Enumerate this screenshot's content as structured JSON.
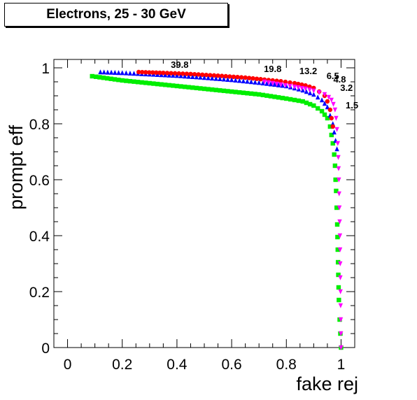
{
  "chart_data": {
    "type": "scatter",
    "title": "Electrons, 25 - 30 GeV",
    "xlabel": "fake rej",
    "ylabel": "prompt eff",
    "xlim": [
      -0.05,
      1.05
    ],
    "ylim": [
      0,
      1.03
    ],
    "xticks": [
      "0",
      "0.2",
      "0.4",
      "0.6",
      "0.8",
      "1"
    ],
    "yticks": [
      "0",
      "0.2",
      "0.4",
      "0.6",
      "0.8",
      "1"
    ],
    "grid": false,
    "series": [
      {
        "color": "#00ee00",
        "marker": "square",
        "x": [
          0.09,
          0.2,
          0.3,
          0.4,
          0.5,
          0.6,
          0.7,
          0.8,
          0.86,
          0.9,
          0.93,
          0.95,
          0.96,
          0.965,
          0.97,
          0.975,
          0.978,
          0.98,
          0.982,
          0.984,
          0.986,
          0.988,
          0.99,
          0.992,
          0.995,
          1.0
        ],
        "y": [
          0.97,
          0.955,
          0.945,
          0.935,
          0.925,
          0.915,
          0.905,
          0.89,
          0.88,
          0.865,
          0.845,
          0.82,
          0.79,
          0.76,
          0.73,
          0.69,
          0.65,
          0.6,
          0.56,
          0.5,
          0.44,
          0.35,
          0.26,
          0.17,
          0.1,
          0.0
        ]
      },
      {
        "color": "#0000ff",
        "marker": "triangle-up",
        "x": [
          0.12,
          0.2,
          0.3,
          0.4,
          0.5,
          0.6,
          0.7,
          0.8,
          0.86,
          0.9,
          0.93,
          0.95,
          0.96,
          0.97,
          0.975,
          0.98,
          0.985
        ],
        "y": [
          0.985,
          0.982,
          0.977,
          0.972,
          0.965,
          0.957,
          0.947,
          0.935,
          0.92,
          0.905,
          0.885,
          0.86,
          0.83,
          0.8,
          0.77,
          0.74,
          0.71
        ]
      },
      {
        "color": "#ff0000",
        "marker": "circle",
        "x": [
          0.26,
          0.35,
          0.45,
          0.55,
          0.65,
          0.72,
          0.78,
          0.83,
          0.87,
          0.9,
          0.92,
          0.94,
          0.95,
          0.96,
          0.965,
          0.97
        ],
        "y": [
          0.985,
          0.982,
          0.978,
          0.972,
          0.965,
          0.958,
          0.952,
          0.945,
          0.937,
          0.928,
          0.915,
          0.9,
          0.88,
          0.85,
          0.82,
          0.79
        ]
      },
      {
        "color": "#ff00ff",
        "marker": "triangle-down",
        "x": [
          0.72,
          0.78,
          0.83,
          0.87,
          0.9,
          0.92,
          0.94,
          0.955,
          0.965,
          0.972,
          0.978,
          0.982,
          0.985,
          0.988,
          0.99,
          0.992,
          0.994,
          0.996,
          0.997,
          0.998,
          0.999,
          1.0
        ],
        "y": [
          0.95,
          0.94,
          0.932,
          0.925,
          0.918,
          0.912,
          0.905,
          0.895,
          0.885,
          0.87,
          0.85,
          0.82,
          0.78,
          0.73,
          0.68,
          0.6,
          0.5,
          0.4,
          0.3,
          0.2,
          0.1,
          0.0
        ]
      }
    ],
    "annotations": [
      {
        "text": "39.8",
        "x": 0.41,
        "y": 1.0
      },
      {
        "text": "19.8",
        "x": 0.75,
        "y": 0.985
      },
      {
        "text": "13.2",
        "x": 0.88,
        "y": 0.978
      },
      {
        "text": "6.5",
        "x": 0.97,
        "y": 0.96
      },
      {
        "text": "4.8",
        "x": 0.995,
        "y": 0.947
      },
      {
        "text": "3.2",
        "x": 1.02,
        "y": 0.918
      },
      {
        "text": "1.5",
        "x": 1.04,
        "y": 0.855
      }
    ]
  }
}
